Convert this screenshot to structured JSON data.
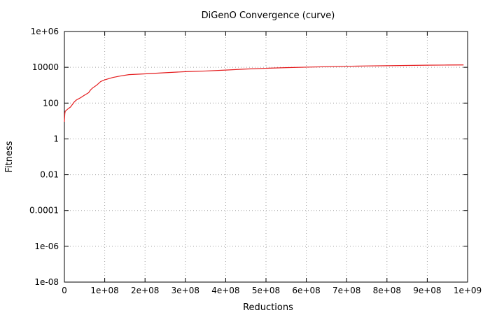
{
  "chart_data": {
    "type": "line",
    "title": "DiGenO Convergence (curve)",
    "xlabel": "Reductions",
    "ylabel": "Fitness",
    "xlim": [
      0,
      1000000000
    ],
    "ylim": [
      1e-08,
      1000000.0
    ],
    "yscale": "log",
    "grid": true,
    "x_ticks": [
      {
        "value": 0,
        "label": "0"
      },
      {
        "value": 100000000,
        "label": "1e+08"
      },
      {
        "value": 200000000,
        "label": "2e+08"
      },
      {
        "value": 300000000,
        "label": "3e+08"
      },
      {
        "value": 400000000,
        "label": "4e+08"
      },
      {
        "value": 500000000,
        "label": "5e+08"
      },
      {
        "value": 600000000,
        "label": "6e+08"
      },
      {
        "value": 700000000,
        "label": "7e+08"
      },
      {
        "value": 800000000,
        "label": "8e+08"
      },
      {
        "value": 900000000,
        "label": "9e+08"
      },
      {
        "value": 1000000000,
        "label": "1e+09"
      }
    ],
    "y_ticks": [
      {
        "value": 1000000.0,
        "label": "1e+06"
      },
      {
        "value": 10000.0,
        "label": "10000"
      },
      {
        "value": 100.0,
        "label": "100"
      },
      {
        "value": 1,
        "label": "1"
      },
      {
        "value": 0.01,
        "label": "0.01"
      },
      {
        "value": 0.0001,
        "label": "0.0001"
      },
      {
        "value": 1e-06,
        "label": "1e-06"
      },
      {
        "value": 1e-08,
        "label": "1e-08"
      }
    ],
    "series": [
      {
        "color": "#e41a1c",
        "x": [
          0,
          1000000,
          2000000,
          5000000,
          10000000,
          15000000,
          20000000,
          25000000,
          30000000,
          40000000,
          50000000,
          60000000,
          65000000,
          70000000,
          80000000,
          90000000,
          100000000,
          120000000,
          140000000,
          160000000,
          200000000,
          250000000,
          300000000,
          350000000,
          400000000,
          450000000,
          500000000,
          550000000,
          600000000,
          650000000,
          700000000,
          750000000,
          800000000,
          850000000,
          900000000,
          950000000,
          990000000
        ],
        "y": [
          9,
          25,
          35,
          40,
          50,
          60,
          85,
          120,
          150,
          200,
          280,
          380,
          550,
          700,
          1000,
          1600,
          2000,
          2700,
          3300,
          3900,
          4300,
          5000,
          5700,
          6200,
          7000,
          8000,
          8800,
          9600,
          10200,
          10800,
          11400,
          11900,
          12300,
          12700,
          13100,
          13400,
          13600
        ]
      }
    ]
  }
}
